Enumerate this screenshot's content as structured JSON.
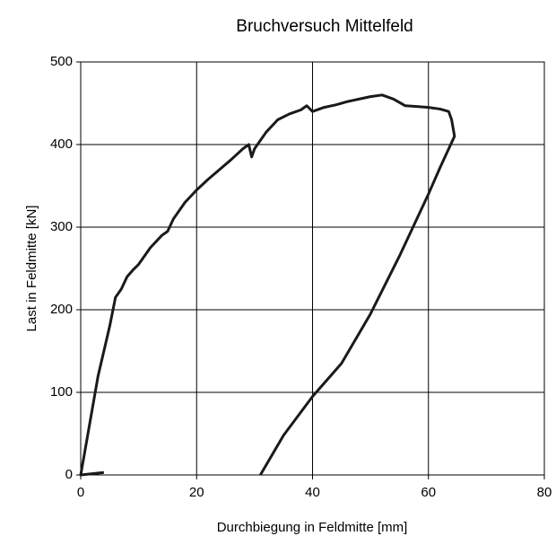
{
  "chart_data": {
    "type": "line",
    "title": "Bruchversuch Mittelfeld",
    "x_label": "Durchbiegung in Feldmitte [mm]",
    "y_label": "Last in Feldmitte  [kN]",
    "x": [
      4,
      0,
      0.5,
      1,
      2,
      3,
      4,
      5,
      6,
      7,
      8,
      9,
      10,
      12,
      14,
      15,
      16,
      18,
      20,
      22,
      24,
      26,
      28,
      29,
      29.5,
      30,
      32,
      34,
      36,
      38,
      39,
      40,
      42,
      44,
      46,
      48,
      50,
      52,
      54,
      56,
      58,
      60,
      62,
      63.5,
      64,
      64.5,
      62,
      60,
      55,
      50,
      45,
      40,
      35,
      31
    ],
    "series": [
      {
        "color": "#1a1a1a",
        "values": [
          3,
          0,
          20,
          40,
          80,
          120,
          150,
          180,
          215,
          225,
          240,
          248,
          255,
          275,
          290,
          295,
          310,
          330,
          345,
          358,
          370,
          382,
          395,
          400,
          385,
          395,
          415,
          430,
          437,
          442,
          447,
          440,
          445,
          448,
          452,
          455,
          458,
          460,
          455,
          447,
          446,
          445,
          443,
          440,
          430,
          410,
          372,
          340,
          265,
          195,
          135,
          95,
          48,
          0
        ]
      }
    ],
    "xlim": [
      0,
      80
    ],
    "xticks": [
      0,
      20,
      40,
      60,
      80
    ],
    "ylim": [
      0,
      500
    ],
    "yticks": [
      0,
      100,
      200,
      300,
      400,
      500
    ],
    "grid": true
  }
}
